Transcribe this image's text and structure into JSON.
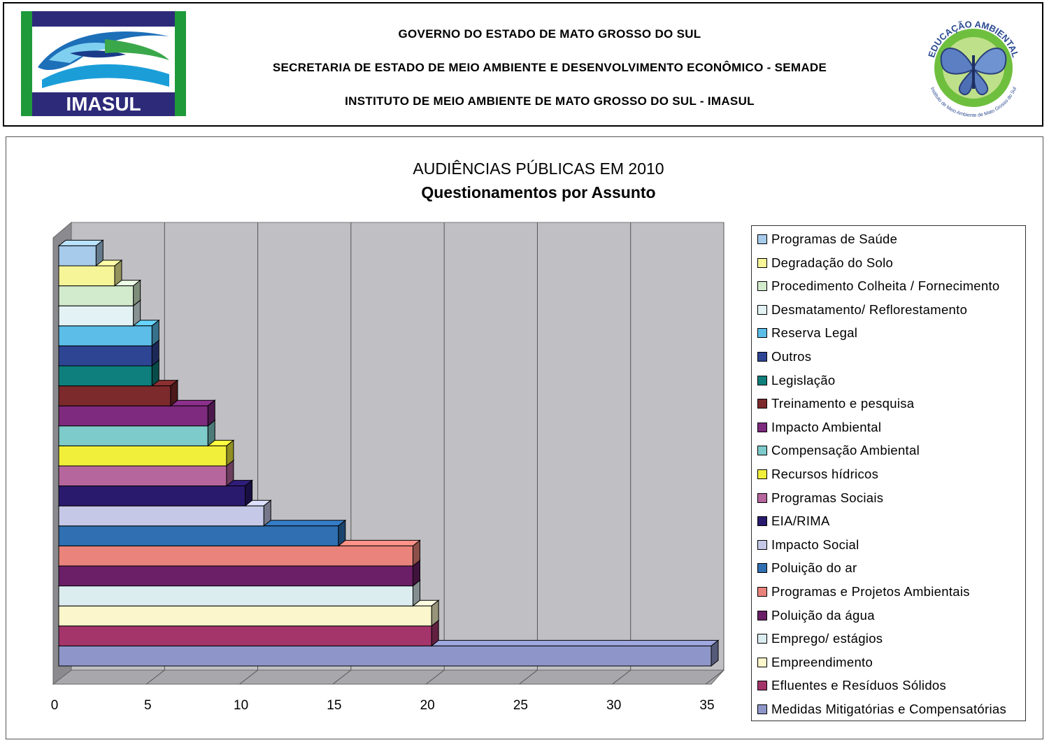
{
  "header": {
    "line1": "GOVERNO DO ESTADO DE MATO GROSSO DO SUL",
    "line2": "SECRETARIA DE ESTADO DE MEIO AMBIENTE E DESENVOLVIMENTO ECONÔMICO - SEMADE",
    "line3": "INSTITUTO DE MEIO AMBIENTE DE MATO GROSSO DO SUL - IMASUL",
    "logo_left_text": "IMASUL",
    "logo_right_text_top": "EDUCAÇÃO AMBIENTAL",
    "logo_right_text_bottom": "Instituto de Meio Ambiente de Mato Grosso do Sul"
  },
  "chart_data": {
    "type": "bar",
    "orientation": "horizontal",
    "style": "3d",
    "title": "AUDIÊNCIAS PÚBLICAS EM 2010",
    "subtitle": "Questionamentos por Assunto",
    "xlim": [
      0,
      35
    ],
    "xticks": [
      "0",
      "5",
      "10",
      "15",
      "20",
      "25",
      "30",
      "35"
    ],
    "grid": "vertical",
    "legend_placement": "right",
    "categories": [
      "Programas de Saúde",
      "Degradação do Solo",
      "Procedimento Colheita / Fornecimento",
      "Desmatamento/ Reflorestamento",
      "Reserva Legal",
      "Outros",
      "Legislação",
      "Treinamento  e pesquisa",
      "Impacto Ambiental",
      "Compensação Ambiental",
      "Recursos hídricos",
      "Programas Sociais",
      "EIA/RIMA",
      "Impacto Social",
      "Poluição do ar",
      "Programas e Projetos Ambientais",
      "Poluição da água",
      "Emprego/ estágios",
      "Empreendimento",
      "Efluentes e Resíduos Sólidos",
      "Medidas Mitigatórias e Compensatórias"
    ],
    "values": [
      2,
      3,
      4,
      4,
      5,
      5,
      5,
      6,
      8,
      8,
      9,
      9,
      10,
      11,
      15,
      19,
      19,
      19,
      20,
      20,
      35
    ],
    "colors": [
      "#a6cbeb",
      "#f6f598",
      "#d3ebcd",
      "#e3f3f5",
      "#5bbde8",
      "#2e4593",
      "#0e7f7c",
      "#7c2a2c",
      "#7e2a7e",
      "#7dcbca",
      "#f2ef3b",
      "#b5669c",
      "#2a1a6e",
      "#c5c8e6",
      "#2f6fb2",
      "#e9837b",
      "#6a1f66",
      "#dcedf0",
      "#fbf6cb",
      "#a3356b",
      "#8e96c9"
    ]
  }
}
